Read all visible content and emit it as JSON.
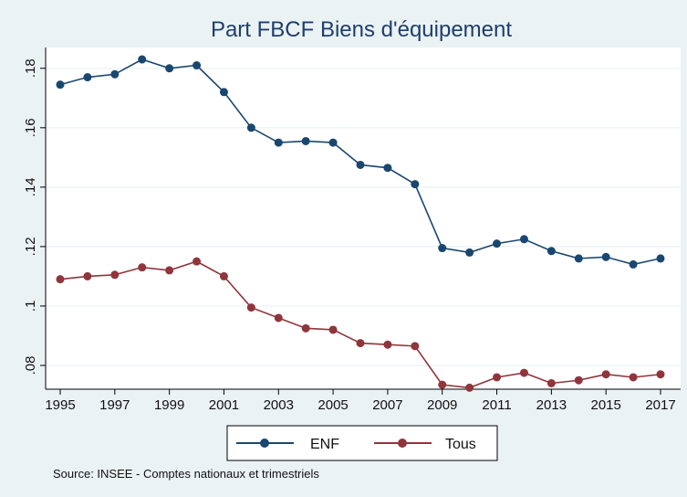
{
  "chart_data": {
    "type": "line",
    "title": "Part FBCF Biens d'équipement",
    "x": [
      1995,
      1996,
      1997,
      1998,
      1999,
      2000,
      2001,
      2002,
      2003,
      2004,
      2005,
      2006,
      2007,
      2008,
      2009,
      2010,
      2011,
      2012,
      2013,
      2014,
      2015,
      2016,
      2017
    ],
    "x_tick_labels": [
      "1995",
      "1997",
      "1999",
      "2001",
      "2003",
      "2005",
      "2007",
      "2009",
      "2011",
      "2013",
      "2015",
      "2017"
    ],
    "y_tick_labels": [
      ".08",
      ".1",
      ".12",
      ".14",
      ".16",
      ".18"
    ],
    "xlim": [
      1995,
      2017
    ],
    "ylim": [
      0.072,
      0.187
    ],
    "grid": true,
    "legend_position": "bottom",
    "series": [
      {
        "name": "ENF",
        "color": "#1a476f",
        "values": [
          0.1745,
          0.177,
          0.178,
          0.183,
          0.18,
          0.181,
          0.172,
          0.16,
          0.155,
          0.1555,
          0.155,
          0.1475,
          0.1465,
          0.141,
          0.1195,
          0.118,
          0.121,
          0.1225,
          0.1185,
          0.116,
          0.1165,
          0.114,
          0.116
        ]
      },
      {
        "name": "Tous",
        "color": "#90353b",
        "values": [
          0.109,
          0.11,
          0.1105,
          0.113,
          0.112,
          0.115,
          0.11,
          0.0995,
          0.096,
          0.0925,
          0.092,
          0.0875,
          0.087,
          0.0865,
          0.0735,
          0.0725,
          0.076,
          0.0775,
          0.074,
          0.075,
          0.077,
          0.076,
          0.077
        ]
      }
    ],
    "source": "Source: INSEE - Comptes nationaux et trimestriels"
  }
}
